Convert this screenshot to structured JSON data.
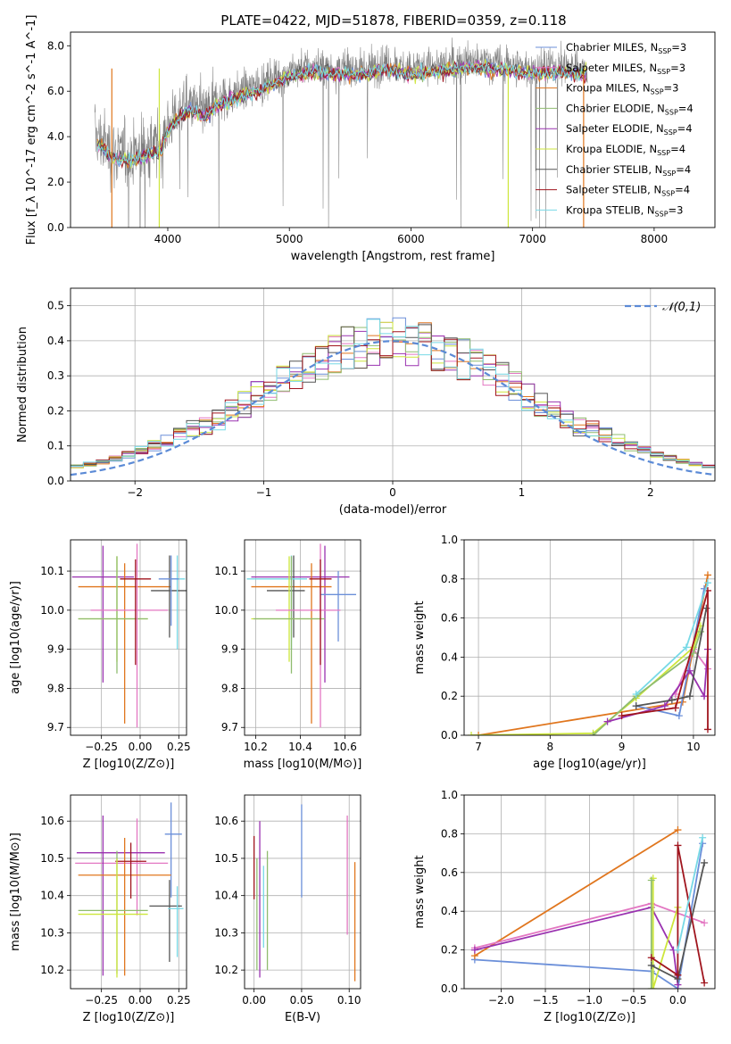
{
  "title": "PLATE=0422, MJD=51878, FIBERID=0359, z=0.118",
  "colors": {
    "Chabrier MILES": "#6b8fd9",
    "Salpeter MILES": "#e377c2",
    "Kroupa MILES": "#e0761e",
    "Chabrier ELODIE": "#8fbc6f",
    "Salpeter ELODIE": "#9a32b0",
    "Kroupa ELODIE": "#cde63b",
    "Chabrier STELIB": "#555555",
    "Salpeter STELIB": "#a0151e",
    "Kroupa STELIB": "#77d9e6"
  },
  "legend": [
    {
      "name": "Chabrier MILES",
      "label": "Chabrier MILES, N",
      "sub": "SSP",
      "n": "=3"
    },
    {
      "name": "Salpeter MILES",
      "label": "Salpeter MILES, N",
      "sub": "SSP",
      "n": "=3"
    },
    {
      "name": "Kroupa MILES",
      "label": "Kroupa MILES, N",
      "sub": "SSP",
      "n": "=3"
    },
    {
      "name": "Chabrier ELODIE",
      "label": "Chabrier ELODIE, N",
      "sub": "SSP",
      "n": "=4"
    },
    {
      "name": "Salpeter ELODIE",
      "label": "Salpeter ELODIE, N",
      "sub": "SSP",
      "n": "=4"
    },
    {
      "name": "Kroupa ELODIE",
      "label": "Kroupa ELODIE, N",
      "sub": "SSP",
      "n": "=4"
    },
    {
      "name": "Chabrier STELIB",
      "label": "Chabrier STELIB, N",
      "sub": "SSP",
      "n": "=4"
    },
    {
      "name": "Salpeter STELIB",
      "label": "Salpeter STELIB, N",
      "sub": "SSP",
      "n": "=4"
    },
    {
      "name": "Kroupa STELIB",
      "label": "Kroupa STELIB, N",
      "sub": "SSP",
      "n": "=3"
    }
  ],
  "chart_data": [
    {
      "id": "spectrum",
      "type": "line",
      "xlabel": "wavelength [Angstrom, rest frame]",
      "ylabel": "Flux [f_λ 10^-17 erg cm^-2 s^-1 A^-1]",
      "xlim": [
        3200,
        8500
      ],
      "ylim": [
        0,
        8.6
      ],
      "xticks": [
        4000,
        5000,
        6000,
        7000,
        8000
      ],
      "yticks": [
        0,
        2,
        4,
        6,
        8
      ],
      "grid": false,
      "legend_position": "right",
      "data_color": "#808080",
      "data_range": [
        3400,
        7450
      ],
      "continuum": {
        "x": [
          3400,
          3550,
          3700,
          3850,
          3950,
          4000,
          4100,
          4200,
          4300,
          4400,
          4600,
          4800,
          5000,
          5200,
          5400,
          5600,
          5800,
          6000,
          6200,
          6500,
          6800,
          7000,
          7200,
          7450
        ],
        "y": [
          4.1,
          3.3,
          3.2,
          3.5,
          3.7,
          4.5,
          5.2,
          5.4,
          5.1,
          5.6,
          6.0,
          6.4,
          6.9,
          7.1,
          7.0,
          7.0,
          7.2,
          7.0,
          7.1,
          7.3,
          7.2,
          7.0,
          7.1,
          7.0
        ]
      }
    },
    {
      "id": "residuals",
      "type": "histogram",
      "xlabel": "(data-model)/error",
      "ylabel": "Normed distribution",
      "xlim": [
        -2.5,
        2.5
      ],
      "ylim": [
        0,
        0.55
      ],
      "xticks": [
        -2,
        -1,
        0,
        1,
        2
      ],
      "yticks": [
        0.0,
        0.1,
        0.2,
        0.3,
        0.4,
        0.5
      ],
      "grid": true,
      "reference": {
        "label": "𝒩(0,1)",
        "type": "gaussian",
        "mean": 0,
        "sigma": 1,
        "color": "#5b8ad6"
      },
      "bin_width": 0.1
    },
    {
      "id": "age-vs-Z",
      "type": "errorbar",
      "xlabel": "Z [log10(Z/Z⊙)]",
      "ylabel": "age [log10(age/yr)]",
      "xlim": [
        -0.45,
        0.3
      ],
      "ylim": [
        9.68,
        10.18
      ],
      "xticks": [
        -0.25,
        0.0,
        0.25
      ],
      "xticklabels": [
        "−0.25",
        "0.00",
        "0.25"
      ],
      "yticks": [
        9.7,
        9.8,
        9.9,
        10.0,
        10.1
      ],
      "yticklabels": [
        "9.7",
        "9.8",
        "9.9",
        "10.0",
        "10.1"
      ],
      "grid": true,
      "points": [
        {
          "series": "Salpeter ELODIE",
          "x": -0.24,
          "xerr": [
            0.2,
            0.2
          ],
          "y": 10.085,
          "yerr": [
            0.27,
            0.08
          ]
        },
        {
          "series": "Kroupa MILES",
          "x": -0.1,
          "xerr": [
            0.3,
            0.3
          ],
          "y": 10.06,
          "yerr": [
            0.35,
            0.06
          ]
        },
        {
          "series": "Chabrier STELIB",
          "x": 0.19,
          "xerr": [
            0.12,
            0.12
          ],
          "y": 10.05,
          "yerr": [
            0.12,
            0.09
          ]
        },
        {
          "series": "Kroupa STELIB",
          "x": 0.24,
          "xerr": [
            0.05,
            0.05
          ],
          "y": 10.08,
          "yerr": [
            0.18,
            0.06
          ]
        },
        {
          "series": "Chabrier MILES",
          "x": 0.2,
          "xerr": [
            0.08,
            0.05
          ],
          "y": 10.08,
          "yerr": [
            0.12,
            0.06
          ]
        },
        {
          "series": "Kroupa ELODIE",
          "x": -0.15,
          "xerr": [
            0.25,
            0.2
          ],
          "y": 9.978,
          "yerr": [
            0.11,
            0.16
          ]
        },
        {
          "series": "Chabrier ELODIE",
          "x": -0.15,
          "xerr": [
            0.25,
            0.2
          ],
          "y": 9.978,
          "yerr": [
            0.14,
            0.16
          ]
        },
        {
          "series": "Salpeter MILES",
          "x": -0.02,
          "xerr": [
            0.3,
            0.2
          ],
          "y": 10.0,
          "yerr": [
            0.3,
            0.17
          ]
        },
        {
          "series": "Salpeter STELIB",
          "x": -0.03,
          "xerr": [
            0.1,
            0.1
          ],
          "y": 10.08,
          "yerr": [
            0.22,
            0.05
          ]
        }
      ]
    },
    {
      "id": "age-vs-mass",
      "type": "errorbar",
      "xlabel": "mass [log10(M/M⊙)]",
      "ylabel": "",
      "xlim": [
        10.15,
        10.67
      ],
      "ylim": [
        9.68,
        10.18
      ],
      "xticks": [
        10.2,
        10.4,
        10.6
      ],
      "xticklabels": [
        "10.2",
        "10.4",
        "10.6"
      ],
      "yticks": [
        9.7,
        9.8,
        9.9,
        10.0,
        10.1
      ],
      "yticklabels": [
        "9.7",
        "9.8",
        "9.9",
        "10.0",
        "10.1"
      ],
      "grid": true,
      "points": [
        {
          "series": "Salpeter ELODIE",
          "x": 10.51,
          "xerr": [
            0.33,
            0.11
          ],
          "y": 10.085,
          "yerr": [
            0.27,
            0.08
          ]
        },
        {
          "series": "Kroupa MILES",
          "x": 10.45,
          "xerr": [
            0.27,
            0.09
          ],
          "y": 10.06,
          "yerr": [
            0.35,
            0.06
          ]
        },
        {
          "series": "Chabrier STELIB",
          "x": 10.37,
          "xerr": [
            0.12,
            0.05
          ],
          "y": 10.05,
          "yerr": [
            0.12,
            0.09
          ]
        },
        {
          "series": "Kroupa STELIB",
          "x": 10.36,
          "xerr": [
            0.2,
            0.07
          ],
          "y": 10.08,
          "yerr": [
            0.18,
            0.06
          ]
        },
        {
          "series": "Chabrier MILES",
          "x": 10.57,
          "xerr": [
            0.08,
            0.08
          ],
          "y": 10.04,
          "yerr": [
            0.12,
            0.06
          ]
        },
        {
          "series": "Kroupa ELODIE",
          "x": 10.35,
          "xerr": [
            0.17,
            0.15
          ],
          "y": 9.978,
          "yerr": [
            0.11,
            0.16
          ]
        },
        {
          "series": "Chabrier ELODIE",
          "x": 10.36,
          "xerr": [
            0.17,
            0.15
          ],
          "y": 9.978,
          "yerr": [
            0.14,
            0.16
          ]
        },
        {
          "series": "Salpeter MILES",
          "x": 10.49,
          "xerr": [
            0.2,
            0.09
          ],
          "y": 10.0,
          "yerr": [
            0.3,
            0.17
          ]
        },
        {
          "series": "Salpeter STELIB",
          "x": 10.49,
          "xerr": [
            0.05,
            0.05
          ],
          "y": 10.08,
          "yerr": [
            0.22,
            0.05
          ]
        }
      ]
    },
    {
      "id": "massweight-vs-age",
      "type": "line",
      "xlabel": "age [log10(age/yr)]",
      "ylabel": "mass weight",
      "xlim": [
        6.8,
        10.3
      ],
      "ylim": [
        0,
        1.0
      ],
      "xticks": [
        7,
        8,
        9,
        10
      ],
      "xticklabels": [
        "7",
        "8",
        "9",
        "10"
      ],
      "yticks": [
        0,
        0.2,
        0.4,
        0.6,
        0.8,
        1.0
      ],
      "yticklabels": [
        "0.0",
        "0.2",
        "0.4",
        "0.6",
        "0.8",
        "1.0"
      ],
      "grid": true,
      "marker": "+",
      "series": [
        {
          "name": "Kroupa MILES",
          "x": [
            7.0,
            9.85,
            10.2
          ],
          "y": [
            0.0,
            0.17,
            0.82
          ]
        },
        {
          "name": "Chabrier MILES",
          "x": [
            9.2,
            9.8,
            10.15
          ],
          "y": [
            0.15,
            0.1,
            0.75
          ]
        },
        {
          "name": "Salpeter MILES",
          "x": [
            9.75,
            10.0,
            10.2
          ],
          "y": [
            0.21,
            0.44,
            0.34
          ]
        },
        {
          "name": "Kroupa ELODIE",
          "x": [
            6.9,
            8.6,
            9.2,
            10.0,
            10.1
          ],
          "y": [
            0.0,
            0.01,
            0.19,
            0.45,
            0.56
          ]
        },
        {
          "name": "Chabrier ELODIE",
          "x": [
            8.6,
            9.2,
            10.0,
            10.1
          ],
          "y": [
            0.0,
            0.2,
            0.42,
            0.53
          ]
        },
        {
          "name": "Salpeter ELODIE",
          "x": [
            8.8,
            9.6,
            9.95,
            10.15,
            10.2
          ],
          "y": [
            0.07,
            0.15,
            0.33,
            0.2,
            0.44
          ]
        },
        {
          "name": "Chabrier STELIB",
          "x": [
            9.2,
            9.7,
            9.95,
            10.18
          ],
          "y": [
            0.15,
            0.18,
            0.2,
            0.65
          ]
        },
        {
          "name": "Salpeter STELIB",
          "x": [
            9.0,
            9.75,
            10.2,
            10.2
          ],
          "y": [
            0.1,
            0.14,
            0.74,
            0.03
          ]
        },
        {
          "name": "Kroupa STELIB",
          "x": [
            9.2,
            9.9,
            10.2
          ],
          "y": [
            0.21,
            0.45,
            0.78
          ]
        }
      ]
    },
    {
      "id": "mass-vs-Z",
      "type": "errorbar",
      "xlabel": "Z [log10(Z/Z⊙)]",
      "ylabel": "mass [log10(M/M⊙)]",
      "xlim": [
        -0.45,
        0.3
      ],
      "ylim": [
        10.15,
        10.67
      ],
      "xticks": [
        -0.25,
        0.0,
        0.25
      ],
      "xticklabels": [
        "−0.25",
        "0.00",
        "0.25"
      ],
      "yticks": [
        10.2,
        10.3,
        10.4,
        10.5,
        10.6
      ],
      "yticklabels": [
        "10.2",
        "10.3",
        "10.4",
        "10.5",
        "10.6"
      ],
      "grid": true,
      "points": [
        {
          "series": "Chabrier MILES",
          "x": 0.2,
          "xerr": [
            0.04,
            0.07
          ],
          "y": 10.565,
          "yerr": [
            0.17,
            0.085
          ]
        },
        {
          "series": "Salpeter MILES",
          "x": -0.02,
          "xerr": [
            0.4,
            0.2
          ],
          "y": 10.487,
          "yerr": [
            0.14,
            0.12
          ]
        },
        {
          "series": "Salpeter ELODIE",
          "x": -0.24,
          "xerr": [
            0.17,
            0.4
          ],
          "y": 10.515,
          "yerr": [
            0.33,
            0.1
          ]
        },
        {
          "series": "Kroupa MILES",
          "x": -0.1,
          "xerr": [
            0.3,
            0.3
          ],
          "y": 10.455,
          "yerr": [
            0.27,
            0.1
          ]
        },
        {
          "series": "Salpeter STELIB",
          "x": -0.06,
          "xerr": [
            0.1,
            0.1
          ],
          "y": 10.492,
          "yerr": [
            0.1,
            0.05
          ]
        },
        {
          "series": "Chabrier STELIB",
          "x": 0.19,
          "xerr": [
            0.13,
            0.08
          ],
          "y": 10.372,
          "yerr": [
            0.15,
            0.07
          ]
        },
        {
          "series": "Kroupa STELIB",
          "x": 0.24,
          "xerr": [
            0.06,
            0.04
          ],
          "y": 10.365,
          "yerr": [
            0.13,
            0.06
          ]
        },
        {
          "series": "Chabrier ELODIE",
          "x": -0.15,
          "xerr": [
            0.25,
            0.2
          ],
          "y": 10.36,
          "yerr": [
            0.17,
            0.16
          ]
        },
        {
          "series": "Kroupa ELODIE",
          "x": -0.15,
          "xerr": [
            0.25,
            0.2
          ],
          "y": 10.35,
          "yerr": [
            0.17,
            0.15
          ]
        }
      ]
    },
    {
      "id": "mass-vs-ebv",
      "type": "errorbar",
      "xlabel": "E(B-V)",
      "ylabel": "",
      "xlim": [
        -0.01,
        0.112
      ],
      "ylim": [
        10.15,
        10.67
      ],
      "xticks": [
        0.0,
        0.05,
        0.1
      ],
      "xticklabels": [
        "0.00",
        "0.05",
        "0.10"
      ],
      "yticks": [
        10.2,
        10.3,
        10.4,
        10.5,
        10.6
      ],
      "yticklabels": [
        "10.2",
        "10.3",
        "10.4",
        "10.5",
        "10.6"
      ],
      "grid": true,
      "points": [
        {
          "series": "Salpeter STELIB",
          "x": 0.0,
          "xerr": [
            0,
            0
          ],
          "y": 10.46,
          "yerr": [
            0.07,
            0.1
          ]
        },
        {
          "series": "Chabrier ELODIE",
          "x": 0.003,
          "xerr": [
            0,
            0
          ],
          "y": 10.4,
          "yerr": [
            0.2,
            0.1
          ]
        },
        {
          "series": "Salpeter ELODIE",
          "x": 0.006,
          "xerr": [
            0,
            0
          ],
          "y": 10.43,
          "yerr": [
            0.25,
            0.17
          ]
        },
        {
          "series": "Kroupa STELIB",
          "x": 0.01,
          "xerr": [
            0,
            0
          ],
          "y": 10.38,
          "yerr": [
            0.12,
            0.1
          ]
        },
        {
          "series": "Chabrier ELODIE",
          "x": 0.014,
          "xerr": [
            0,
            0
          ],
          "y": 10.42,
          "yerr": [
            0.22,
            0.1
          ]
        },
        {
          "series": "Chabrier MILES",
          "x": 0.05,
          "xerr": [
            0,
            0
          ],
          "y": 10.525,
          "yerr": [
            0.13,
            0.12
          ]
        },
        {
          "series": "Salpeter MILES",
          "x": 0.098,
          "xerr": [
            0,
            0
          ],
          "y": 10.455,
          "yerr": [
            0.16,
            0.16
          ]
        },
        {
          "series": "Kroupa MILES",
          "x": 0.106,
          "xerr": [
            0,
            0
          ],
          "y": 10.33,
          "yerr": [
            0.16,
            0.16
          ]
        }
      ]
    },
    {
      "id": "massweight-vs-Z",
      "type": "line",
      "xlabel": "Z [log10(Z/Z⊙)]",
      "ylabel": "mass weight",
      "xlim": [
        -2.42,
        0.42
      ],
      "ylim": [
        0,
        1.0
      ],
      "xticks": [
        -2.0,
        -1.5,
        -1.0,
        -0.5,
        0.0
      ],
      "xticklabels": [
        "−2.0",
        "−1.5",
        "−1.0",
        "−0.5",
        "0.0"
      ],
      "yticks": [
        0,
        0.2,
        0.4,
        0.6,
        0.8,
        1.0
      ],
      "yticklabels": [
        "0.0",
        "0.2",
        "0.4",
        "0.6",
        "0.8",
        "1.0"
      ],
      "grid": true,
      "marker": "+",
      "series": [
        {
          "name": "Chabrier MILES",
          "x": [
            -2.3,
            -0.3,
            0.0,
            0.28
          ],
          "y": [
            0.15,
            0.09,
            0.0,
            0.75
          ]
        },
        {
          "name": "Kroupa MILES",
          "x": [
            -2.3,
            0.0
          ],
          "y": [
            0.17,
            0.82
          ]
        },
        {
          "name": "Salpeter MILES",
          "x": [
            -2.3,
            -0.3,
            0.3
          ],
          "y": [
            0.21,
            0.44,
            0.34
          ]
        },
        {
          "name": "Salpeter ELODIE",
          "x": [
            -2.3,
            -0.3,
            -0.05,
            0.0
          ],
          "y": [
            0.2,
            0.42,
            0.2,
            0.02
          ]
        },
        {
          "name": "Kroupa ELODIE",
          "x": [
            -0.28,
            -0.28,
            0.0
          ],
          "y": [
            0.57,
            0.0,
            0.42
          ]
        },
        {
          "name": "Chabrier ELODIE",
          "x": [
            -0.3,
            -0.3
          ],
          "y": [
            0.56,
            0.0
          ]
        },
        {
          "name": "Chabrier STELIB",
          "x": [
            -0.3,
            0.0,
            0.3
          ],
          "y": [
            0.12,
            0.05,
            0.65
          ]
        },
        {
          "name": "Salpeter STELIB",
          "x": [
            -0.3,
            0.0,
            0.0,
            0.3
          ],
          "y": [
            0.16,
            0.07,
            0.74,
            0.03
          ]
        },
        {
          "name": "Kroupa STELIB",
          "x": [
            0.0,
            0.28
          ],
          "y": [
            0.2,
            0.78
          ]
        }
      ]
    }
  ]
}
